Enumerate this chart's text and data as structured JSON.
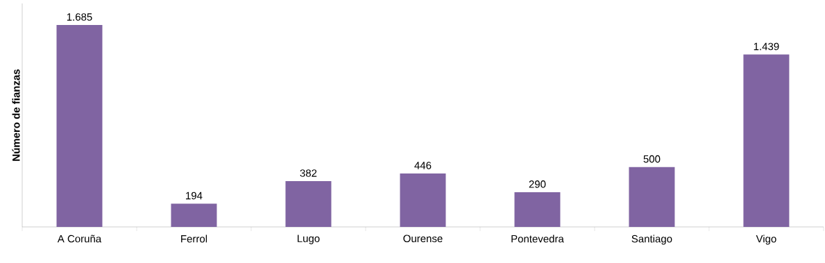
{
  "chart_data": {
    "type": "bar",
    "ylabel": "Número de fianzas",
    "categories": [
      "A Coruña",
      "Ferrol",
      "Lugo",
      "Ourense",
      "Pontevedra",
      "Santiago",
      "Vigo"
    ],
    "values": [
      1685,
      194,
      382,
      446,
      290,
      500,
      1439
    ],
    "value_labels": [
      "1.685",
      "194",
      "382",
      "446",
      "290",
      "500",
      "1.439"
    ],
    "color": "#8064a2"
  }
}
